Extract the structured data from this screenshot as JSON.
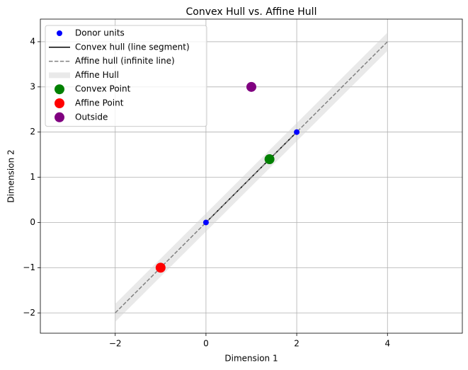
{
  "chart_data": {
    "type": "scatter",
    "title": "Convex Hull vs. Affine Hull",
    "xlabel": "Dimension 1",
    "ylabel": "Dimension 2",
    "xlim": [
      -3.65,
      5.65
    ],
    "ylim": [
      -2.45,
      4.5
    ],
    "xticks": [
      {
        "value": -2,
        "label": "−2"
      },
      0,
      2,
      4
    ],
    "yticks": [
      {
        "value": -2,
        "label": "−2"
      },
      {
        "value": -1,
        "label": "−1"
      },
      0,
      1,
      2,
      3,
      4
    ],
    "grid": true,
    "legend": "upper left",
    "series": [
      {
        "name": "Donor units",
        "type": "scatter",
        "color": "#0000ff",
        "x": [
          0,
          2
        ],
        "y": [
          0,
          2
        ]
      },
      {
        "name": "Convex hull (line segment)",
        "type": "line",
        "color": "#000000",
        "x": [
          0,
          2
        ],
        "y": [
          0,
          2
        ]
      },
      {
        "name": "Affine hull (infinite line)",
        "type": "line",
        "dash": true,
        "color": "#808080",
        "x": [
          -2,
          4
        ],
        "y": [
          -2,
          4
        ]
      },
      {
        "name": "Affine Hull",
        "type": "band",
        "color": "#d3d3d3",
        "x": [
          -2,
          4
        ],
        "lower": [
          -2.2,
          3.8
        ],
        "upper": [
          -1.8,
          4.2
        ]
      },
      {
        "name": "Convex Point",
        "type": "scatter",
        "color": "#008000",
        "x": [
          1.4
        ],
        "y": [
          1.4
        ]
      },
      {
        "name": "Affine Point",
        "type": "scatter",
        "color": "#ff0000",
        "x": [
          -1
        ],
        "y": [
          -1
        ]
      },
      {
        "name": "Outside",
        "type": "scatter",
        "color": "#800080",
        "x": [
          1
        ],
        "y": [
          3
        ]
      }
    ]
  }
}
